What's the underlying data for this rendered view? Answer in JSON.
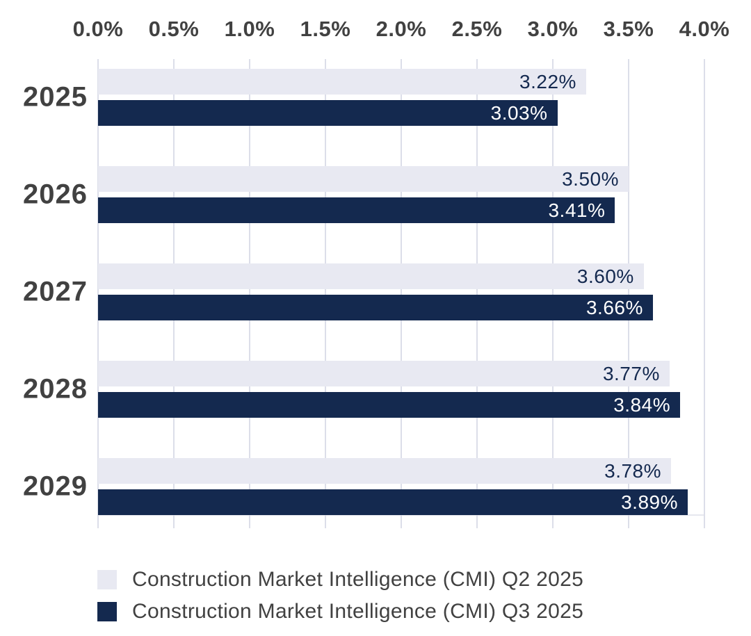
{
  "chart_data": {
    "type": "bar",
    "orientation": "horizontal",
    "title": "",
    "categories": [
      "2025",
      "2026",
      "2027",
      "2028",
      "2029"
    ],
    "series": [
      {
        "name": "Construction Market Intelligence (CMI) Q2 2025",
        "color": "#e8e9f2",
        "label_color": "#14294f",
        "values": [
          3.22,
          3.5,
          3.6,
          3.77,
          3.78
        ],
        "labels": [
          "3.22%",
          "3.50%",
          "3.60%",
          "3.77%",
          "3.78%"
        ]
      },
      {
        "name": "Construction Market Intelligence (CMI) Q3 2025",
        "color": "#14294f",
        "label_color": "#ffffff",
        "values": [
          3.03,
          3.41,
          3.66,
          3.84,
          3.89
        ],
        "labels": [
          "3.03%",
          "3.41%",
          "3.66%",
          "3.84%",
          "3.89%"
        ]
      }
    ],
    "x_axis": {
      "position": "top",
      "min": 0,
      "max": 4,
      "ticks": [
        "0.0%",
        "0.5%",
        "1.0%",
        "1.5%",
        "2.0%",
        "2.5%",
        "3.0%",
        "3.5%",
        "4.0%"
      ]
    },
    "grid": true,
    "legend_position": "bottom-left",
    "colors": {
      "background": "#ffffff",
      "grid": "#dcdee9",
      "axis_text": "#414141"
    }
  }
}
